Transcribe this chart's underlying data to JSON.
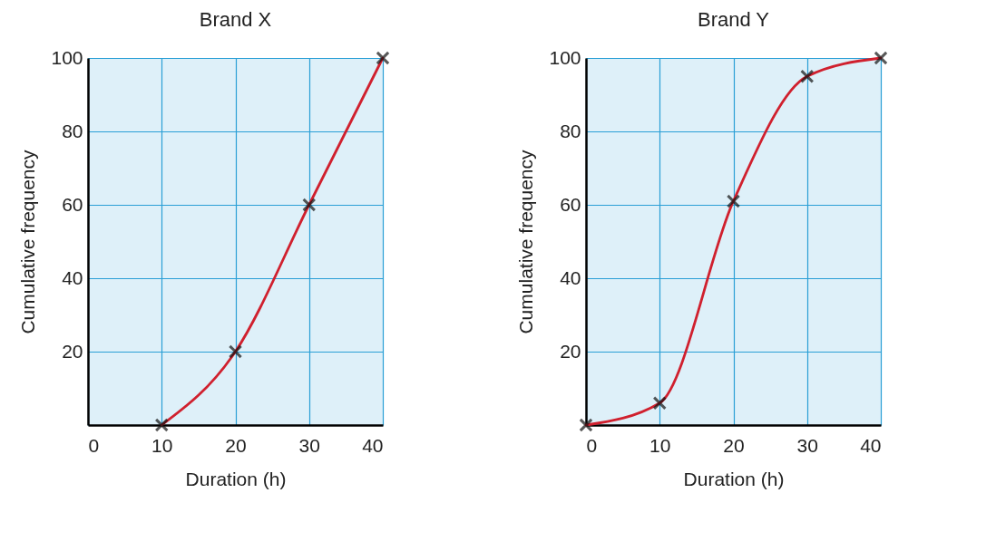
{
  "chart_data": [
    {
      "type": "line",
      "title": "Brand X",
      "xlabel": "Duration (h)",
      "ylabel": "Cumulative frequency",
      "x": [
        10,
        20,
        30,
        40
      ],
      "series": [
        {
          "color": "#d0202e",
          "values": [
            0,
            20,
            60,
            100
          ]
        }
      ],
      "xlim": [
        0,
        40
      ],
      "ylim": [
        0,
        100
      ],
      "xticks": [
        0,
        10,
        20,
        30,
        40
      ],
      "yticks": [
        {
          "value": 0,
          "label": null
        },
        20,
        40,
        60,
        80,
        100
      ],
      "grid": true,
      "marker": "cross"
    },
    {
      "type": "line",
      "title": "Brand Y",
      "xlabel": "Duration (h)",
      "ylabel": "Cumulative frequency",
      "x": [
        0,
        10,
        20,
        30,
        40
      ],
      "series": [
        {
          "color": "#d0202e",
          "values": [
            0,
            6,
            61,
            95,
            100
          ]
        }
      ],
      "xlim": [
        0,
        40
      ],
      "ylim": [
        0,
        100
      ],
      "xticks": [
        0,
        10,
        20,
        30,
        40
      ],
      "yticks": [
        {
          "value": 0,
          "label": null
        },
        20,
        40,
        60,
        80,
        100
      ],
      "grid": true,
      "marker": "cross"
    }
  ]
}
